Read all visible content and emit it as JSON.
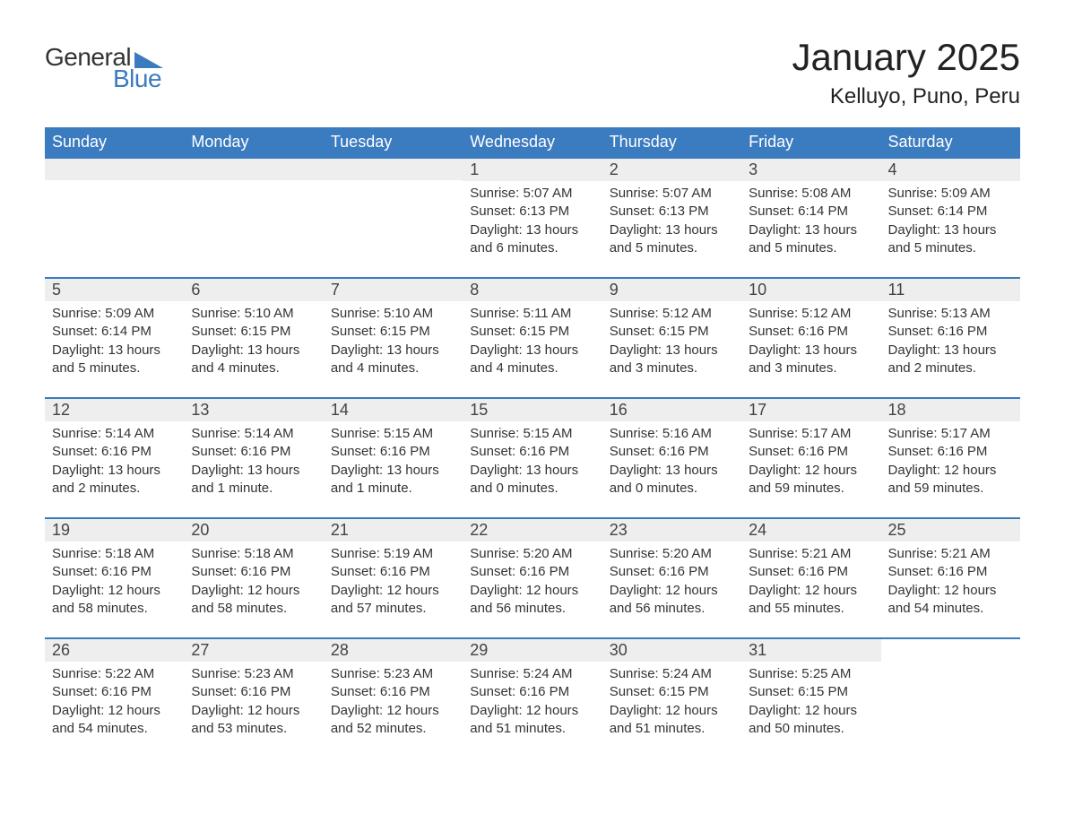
{
  "logo": {
    "text_general": "General",
    "text_blue": "Blue"
  },
  "header": {
    "month_title": "January 2025",
    "location": "Kelluyo, Puno, Peru"
  },
  "colors": {
    "brand_blue": "#3b7bbf",
    "header_row_bg": "#3b7bbf",
    "header_row_text": "#ffffff",
    "day_strip_bg": "#eeeeee",
    "body_text": "#333333",
    "page_bg": "#ffffff"
  },
  "typography": {
    "month_title_fontsize": 42,
    "location_fontsize": 24,
    "day_header_fontsize": 18,
    "day_number_fontsize": 18,
    "day_info_fontsize": 15,
    "logo_fontsize": 28
  },
  "day_names": [
    "Sunday",
    "Monday",
    "Tuesday",
    "Wednesday",
    "Thursday",
    "Friday",
    "Saturday"
  ],
  "weeks": [
    [
      null,
      null,
      null,
      {
        "num": "1",
        "sunrise": "Sunrise: 5:07 AM",
        "sunset": "Sunset: 6:13 PM",
        "daylight": "Daylight: 13 hours and 6 minutes."
      },
      {
        "num": "2",
        "sunrise": "Sunrise: 5:07 AM",
        "sunset": "Sunset: 6:13 PM",
        "daylight": "Daylight: 13 hours and 5 minutes."
      },
      {
        "num": "3",
        "sunrise": "Sunrise: 5:08 AM",
        "sunset": "Sunset: 6:14 PM",
        "daylight": "Daylight: 13 hours and 5 minutes."
      },
      {
        "num": "4",
        "sunrise": "Sunrise: 5:09 AM",
        "sunset": "Sunset: 6:14 PM",
        "daylight": "Daylight: 13 hours and 5 minutes."
      }
    ],
    [
      {
        "num": "5",
        "sunrise": "Sunrise: 5:09 AM",
        "sunset": "Sunset: 6:14 PM",
        "daylight": "Daylight: 13 hours and 5 minutes."
      },
      {
        "num": "6",
        "sunrise": "Sunrise: 5:10 AM",
        "sunset": "Sunset: 6:15 PM",
        "daylight": "Daylight: 13 hours and 4 minutes."
      },
      {
        "num": "7",
        "sunrise": "Sunrise: 5:10 AM",
        "sunset": "Sunset: 6:15 PM",
        "daylight": "Daylight: 13 hours and 4 minutes."
      },
      {
        "num": "8",
        "sunrise": "Sunrise: 5:11 AM",
        "sunset": "Sunset: 6:15 PM",
        "daylight": "Daylight: 13 hours and 4 minutes."
      },
      {
        "num": "9",
        "sunrise": "Sunrise: 5:12 AM",
        "sunset": "Sunset: 6:15 PM",
        "daylight": "Daylight: 13 hours and 3 minutes."
      },
      {
        "num": "10",
        "sunrise": "Sunrise: 5:12 AM",
        "sunset": "Sunset: 6:16 PM",
        "daylight": "Daylight: 13 hours and 3 minutes."
      },
      {
        "num": "11",
        "sunrise": "Sunrise: 5:13 AM",
        "sunset": "Sunset: 6:16 PM",
        "daylight": "Daylight: 13 hours and 2 minutes."
      }
    ],
    [
      {
        "num": "12",
        "sunrise": "Sunrise: 5:14 AM",
        "sunset": "Sunset: 6:16 PM",
        "daylight": "Daylight: 13 hours and 2 minutes."
      },
      {
        "num": "13",
        "sunrise": "Sunrise: 5:14 AM",
        "sunset": "Sunset: 6:16 PM",
        "daylight": "Daylight: 13 hours and 1 minute."
      },
      {
        "num": "14",
        "sunrise": "Sunrise: 5:15 AM",
        "sunset": "Sunset: 6:16 PM",
        "daylight": "Daylight: 13 hours and 1 minute."
      },
      {
        "num": "15",
        "sunrise": "Sunrise: 5:15 AM",
        "sunset": "Sunset: 6:16 PM",
        "daylight": "Daylight: 13 hours and 0 minutes."
      },
      {
        "num": "16",
        "sunrise": "Sunrise: 5:16 AM",
        "sunset": "Sunset: 6:16 PM",
        "daylight": "Daylight: 13 hours and 0 minutes."
      },
      {
        "num": "17",
        "sunrise": "Sunrise: 5:17 AM",
        "sunset": "Sunset: 6:16 PM",
        "daylight": "Daylight: 12 hours and 59 minutes."
      },
      {
        "num": "18",
        "sunrise": "Sunrise: 5:17 AM",
        "sunset": "Sunset: 6:16 PM",
        "daylight": "Daylight: 12 hours and 59 minutes."
      }
    ],
    [
      {
        "num": "19",
        "sunrise": "Sunrise: 5:18 AM",
        "sunset": "Sunset: 6:16 PM",
        "daylight": "Daylight: 12 hours and 58 minutes."
      },
      {
        "num": "20",
        "sunrise": "Sunrise: 5:18 AM",
        "sunset": "Sunset: 6:16 PM",
        "daylight": "Daylight: 12 hours and 58 minutes."
      },
      {
        "num": "21",
        "sunrise": "Sunrise: 5:19 AM",
        "sunset": "Sunset: 6:16 PM",
        "daylight": "Daylight: 12 hours and 57 minutes."
      },
      {
        "num": "22",
        "sunrise": "Sunrise: 5:20 AM",
        "sunset": "Sunset: 6:16 PM",
        "daylight": "Daylight: 12 hours and 56 minutes."
      },
      {
        "num": "23",
        "sunrise": "Sunrise: 5:20 AM",
        "sunset": "Sunset: 6:16 PM",
        "daylight": "Daylight: 12 hours and 56 minutes."
      },
      {
        "num": "24",
        "sunrise": "Sunrise: 5:21 AM",
        "sunset": "Sunset: 6:16 PM",
        "daylight": "Daylight: 12 hours and 55 minutes."
      },
      {
        "num": "25",
        "sunrise": "Sunrise: 5:21 AM",
        "sunset": "Sunset: 6:16 PM",
        "daylight": "Daylight: 12 hours and 54 minutes."
      }
    ],
    [
      {
        "num": "26",
        "sunrise": "Sunrise: 5:22 AM",
        "sunset": "Sunset: 6:16 PM",
        "daylight": "Daylight: 12 hours and 54 minutes."
      },
      {
        "num": "27",
        "sunrise": "Sunrise: 5:23 AM",
        "sunset": "Sunset: 6:16 PM",
        "daylight": "Daylight: 12 hours and 53 minutes."
      },
      {
        "num": "28",
        "sunrise": "Sunrise: 5:23 AM",
        "sunset": "Sunset: 6:16 PM",
        "daylight": "Daylight: 12 hours and 52 minutes."
      },
      {
        "num": "29",
        "sunrise": "Sunrise: 5:24 AM",
        "sunset": "Sunset: 6:16 PM",
        "daylight": "Daylight: 12 hours and 51 minutes."
      },
      {
        "num": "30",
        "sunrise": "Sunrise: 5:24 AM",
        "sunset": "Sunset: 6:15 PM",
        "daylight": "Daylight: 12 hours and 51 minutes."
      },
      {
        "num": "31",
        "sunrise": "Sunrise: 5:25 AM",
        "sunset": "Sunset: 6:15 PM",
        "daylight": "Daylight: 12 hours and 50 minutes."
      },
      null
    ]
  ]
}
